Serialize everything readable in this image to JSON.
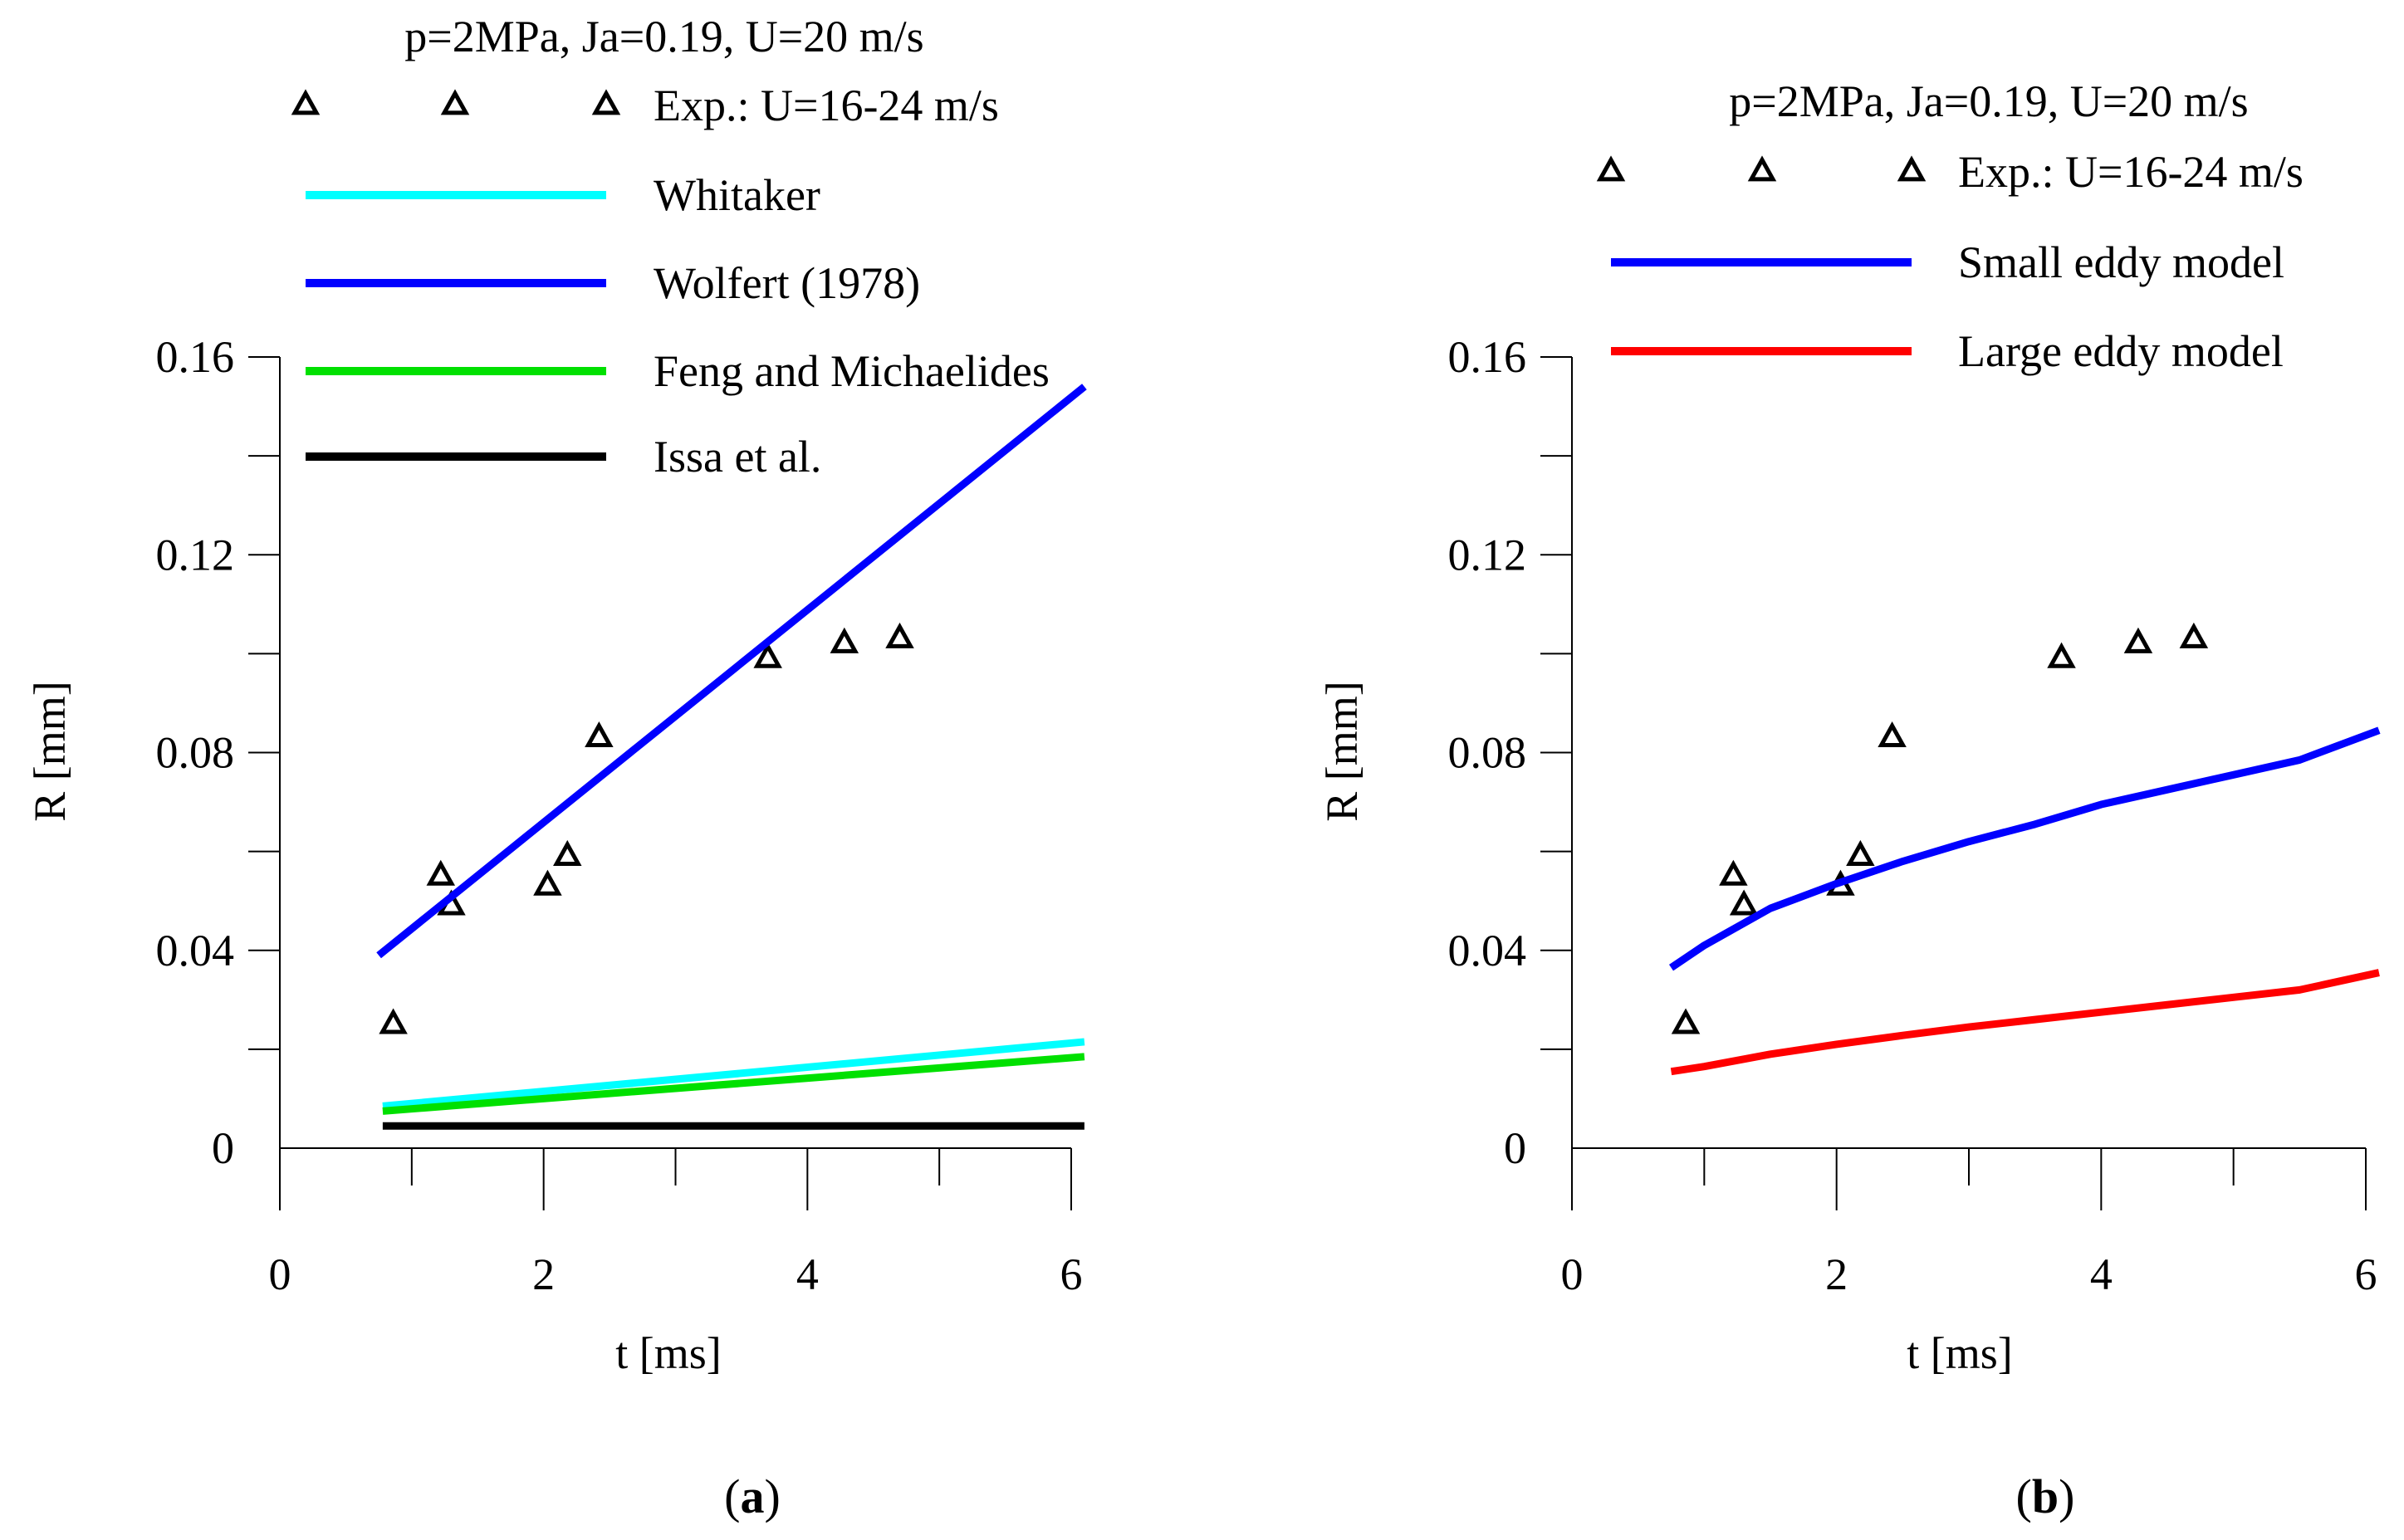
{
  "panels": [
    {
      "label_open": "(",
      "label_letter": "a",
      "label_close": ")"
    },
    {
      "label_open": "(",
      "label_letter": "b",
      "label_close": ")"
    }
  ],
  "chart_data": [
    {
      "type": "line",
      "title": "p=2MPa, Ja=0.19, U=20 m/s",
      "xlabel": "t [ms]",
      "ylabel": "R [mm]",
      "xlim": [
        0,
        6
      ],
      "ylim": [
        0,
        0.16
      ],
      "xticks": [
        0,
        2,
        4,
        6
      ],
      "xtick_labels": [
        "0",
        "2",
        "4",
        "6"
      ],
      "yticks": [
        0,
        0.04,
        0.08,
        0.12,
        0.16
      ],
      "ytick_labels": [
        "0",
        "0.04",
        "0.08",
        "0.12",
        "0.16"
      ],
      "legend_position": "top-left",
      "series": [
        {
          "name": "Exp.: U=16-24 m/s",
          "kind": "scatter",
          "marker": "triangle",
          "color": "#000000",
          "x": [
            0.86,
            1.22,
            1.3,
            2.03,
            2.18,
            2.42,
            3.7,
            4.28,
            4.7
          ],
          "y": [
            0.025,
            0.055,
            0.049,
            0.053,
            0.059,
            0.083,
            0.099,
            0.102,
            0.103
          ]
        },
        {
          "name": "Whitaker",
          "kind": "line",
          "color": "#00ffff",
          "x": [
            0.78,
            6.1
          ],
          "y": [
            0.0085,
            0.0215
          ]
        },
        {
          "name": "Wolfert (1978)",
          "kind": "line",
          "color": "#0000ff",
          "x": [
            0.75,
            6.1
          ],
          "y": [
            0.039,
            0.154
          ]
        },
        {
          "name": "Feng and Michaelides",
          "kind": "line",
          "color": "#00e000",
          "x": [
            0.78,
            6.1
          ],
          "y": [
            0.0075,
            0.0185
          ]
        },
        {
          "name": "Issa et al.",
          "kind": "line",
          "color": "#000000",
          "x": [
            0.78,
            6.1
          ],
          "y": [
            0.0045,
            0.0045
          ]
        }
      ]
    },
    {
      "type": "line",
      "title": "p=2MPa, Ja=0.19, U=20 m/s",
      "xlabel": "t [ms]",
      "ylabel": "R [mm]",
      "xlim": [
        0,
        6
      ],
      "ylim": [
        0,
        0.16
      ],
      "xticks": [
        0,
        2,
        4,
        6
      ],
      "xtick_labels": [
        "0",
        "2",
        "4",
        "6"
      ],
      "yticks": [
        0,
        0.04,
        0.08,
        0.12,
        0.16
      ],
      "ytick_labels": [
        "0",
        "0.04",
        "0.08",
        "0.12",
        "0.16"
      ],
      "legend_position": "top-right",
      "series": [
        {
          "name": "Exp.: U=16-24 m/s",
          "kind": "scatter",
          "marker": "triangle",
          "color": "#000000",
          "x": [
            0.86,
            1.22,
            1.3,
            2.03,
            2.18,
            2.42,
            3.7,
            4.28,
            4.7
          ],
          "y": [
            0.025,
            0.055,
            0.049,
            0.053,
            0.059,
            0.083,
            0.099,
            0.102,
            0.103
          ]
        },
        {
          "name": "Small eddy model",
          "kind": "line",
          "color": "#0000ff",
          "x": [
            0.75,
            1.0,
            1.5,
            2.0,
            2.5,
            3.0,
            3.5,
            4.0,
            4.5,
            5.0,
            5.5,
            6.1
          ],
          "y": [
            0.0365,
            0.041,
            0.0485,
            0.0535,
            0.058,
            0.062,
            0.0655,
            0.0695,
            0.0725,
            0.0755,
            0.0785,
            0.0845
          ]
        },
        {
          "name": "Large eddy model",
          "kind": "line",
          "color": "#ff0000",
          "x": [
            0.75,
            1.0,
            1.5,
            2.0,
            2.5,
            3.0,
            3.5,
            4.0,
            4.5,
            5.0,
            5.5,
            6.1
          ],
          "y": [
            0.0155,
            0.0165,
            0.019,
            0.021,
            0.0228,
            0.0245,
            0.026,
            0.0275,
            0.029,
            0.0305,
            0.032,
            0.0355
          ]
        }
      ]
    }
  ]
}
